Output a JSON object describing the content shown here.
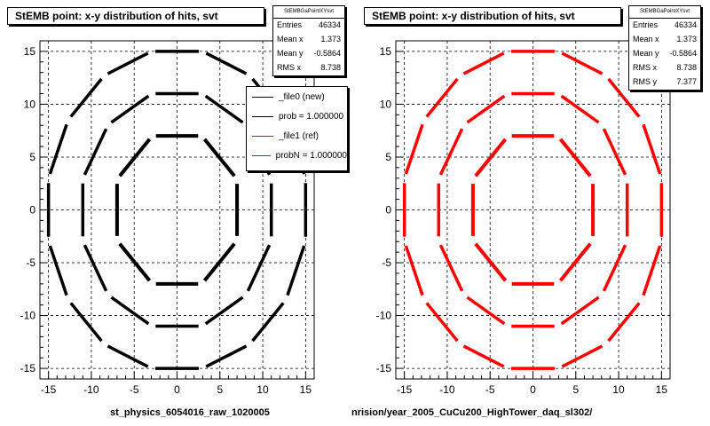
{
  "colors": {
    "ref": "#000000",
    "new": "#ff0000",
    "background": "#ffffff",
    "grid": "#000000"
  },
  "chart_data": [
    {
      "type": "scatter",
      "title": "StEMB point: x-y distribution of hits, svt",
      "xlabel": "st_physics_6054016_raw_1020005",
      "ylabel": "",
      "xlim": [
        -16,
        16
      ],
      "ylim": [
        -16,
        16
      ],
      "xticks": [
        -15,
        -10,
        -5,
        0,
        5,
        10,
        15
      ],
      "yticks": [
        -15,
        -10,
        -5,
        0,
        5,
        10,
        15
      ],
      "grid": true,
      "color": "#000000",
      "layers": [
        {
          "radius": 7.0,
          "ladders": 8
        },
        {
          "radius": 11.0,
          "ladders": 12
        },
        {
          "radius": 15.0,
          "ladders": 16
        }
      ],
      "stats": {
        "header": "StEMBGaPointXYsvt",
        "rows": [
          {
            "label": "Entries",
            "value": "46334"
          },
          {
            "label": "Mean x",
            "value": "1.373"
          },
          {
            "label": "Mean y",
            "value": "-0.5864"
          },
          {
            "label": "RMS x",
            "value": "8.738"
          }
        ]
      },
      "legend": {
        "position": "top-right",
        "entries": [
          {
            "label": "_file0 (new)",
            "color": "#000000"
          },
          {
            "label": "prob = 1.000000",
            "color": "#000000"
          },
          {
            "label": "_file1 (ref)",
            "color": "#ff0000"
          },
          {
            "label": "probN = 1.000000",
            "color": "#ff0000"
          }
        ]
      }
    },
    {
      "type": "scatter",
      "title": "StEMB point: x-y distribution of hits, svt",
      "xlabel": "nrision/year_2005_CuCu200_HighTower_daq_sl302/",
      "ylabel": "",
      "xlim": [
        -16,
        16
      ],
      "ylim": [
        -16,
        16
      ],
      "xticks": [
        -15,
        -10,
        -5,
        0,
        5,
        10,
        15
      ],
      "yticks": [
        -15,
        -10,
        -5,
        0,
        5,
        10,
        15
      ],
      "grid": true,
      "color": "#ff0000",
      "layers": [
        {
          "radius": 7.0,
          "ladders": 8
        },
        {
          "radius": 11.0,
          "ladders": 12
        },
        {
          "radius": 15.0,
          "ladders": 16
        }
      ],
      "stats": {
        "header": "StEMBGaPointXYsvt",
        "rows": [
          {
            "label": "Entries",
            "value": "46334"
          },
          {
            "label": "Mean x",
            "value": "1.373"
          },
          {
            "label": "Mean y",
            "value": "-0.5864"
          },
          {
            "label": "RMS x",
            "value": "8.738"
          },
          {
            "label": "RMS y",
            "value": "7.377"
          }
        ]
      }
    }
  ]
}
